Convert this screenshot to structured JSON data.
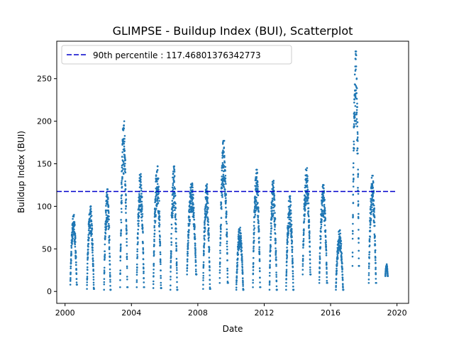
{
  "chart_data": {
    "type": "scatter",
    "title": "GLIMPSE - Buildup Index (BUI), Scatterplot",
    "xlabel": "Date",
    "ylabel": "Buildup Index (BUI)",
    "xlim": [
      1999.5,
      2020.7
    ],
    "ylim": [
      -14,
      294
    ],
    "x_ticks": [
      2000,
      2004,
      2008,
      2012,
      2016,
      2020
    ],
    "x_tick_labels": [
      "2000",
      "2004",
      "2008",
      "2012",
      "2016",
      "2020"
    ],
    "y_ticks": [
      0,
      50,
      100,
      150,
      200,
      250
    ],
    "y_tick_labels": [
      "0",
      "50",
      "100",
      "150",
      "200",
      "250"
    ],
    "grid": false,
    "legend_position": "top-left",
    "reference_line": {
      "label": "90th percentile : 117.46801376342773",
      "value": 117.46801376342773,
      "x_range": [
        1999.5,
        2020.0
      ],
      "style": "dashed",
      "color": "#0000cc"
    },
    "series_color": "#1f77b4",
    "seasons": [
      {
        "year": 2000,
        "start": 2000.32,
        "end": 2000.72,
        "min": 8,
        "max": 90
      },
      {
        "year": 2001,
        "start": 2001.32,
        "end": 2001.75,
        "min": 3,
        "max": 100
      },
      {
        "year": 2002,
        "start": 2002.35,
        "end": 2002.75,
        "min": 2,
        "max": 120
      },
      {
        "year": 2003,
        "start": 2003.32,
        "end": 2003.77,
        "min": 5,
        "max": 200
      },
      {
        "year": 2004,
        "start": 2004.32,
        "end": 2004.77,
        "min": 5,
        "max": 138
      },
      {
        "year": 2005,
        "start": 2005.32,
        "end": 2005.8,
        "min": 4,
        "max": 147
      },
      {
        "year": 2006,
        "start": 2006.35,
        "end": 2006.77,
        "min": 2,
        "max": 147
      },
      {
        "year": 2007,
        "start": 2007.35,
        "end": 2007.92,
        "min": 20,
        "max": 127
      },
      {
        "year": 2008,
        "start": 2008.32,
        "end": 2008.75,
        "min": 3,
        "max": 126
      },
      {
        "year": 2009,
        "start": 2009.32,
        "end": 2009.82,
        "min": 10,
        "max": 177
      },
      {
        "year": 2010,
        "start": 2010.32,
        "end": 2010.75,
        "min": 2,
        "max": 75
      },
      {
        "year": 2011,
        "start": 2011.32,
        "end": 2011.77,
        "min": 5,
        "max": 143
      },
      {
        "year": 2012,
        "start": 2012.32,
        "end": 2012.77,
        "min": 2,
        "max": 130
      },
      {
        "year": 2013,
        "start": 2013.32,
        "end": 2013.77,
        "min": 2,
        "max": 112
      },
      {
        "year": 2014,
        "start": 2014.32,
        "end": 2014.8,
        "min": 20,
        "max": 145
      },
      {
        "year": 2015,
        "start": 2015.32,
        "end": 2015.8,
        "min": 10,
        "max": 125
      },
      {
        "year": 2016,
        "start": 2016.32,
        "end": 2016.77,
        "min": 2,
        "max": 72
      },
      {
        "year": 2017,
        "start": 2017.32,
        "end": 2017.72,
        "min": 30,
        "max": 282
      },
      {
        "year": 2018,
        "start": 2018.3,
        "end": 2018.75,
        "min": 10,
        "max": 136
      },
      {
        "year": 2019,
        "start": 2019.3,
        "end": 2019.45,
        "min": 18,
        "max": 32
      }
    ]
  }
}
